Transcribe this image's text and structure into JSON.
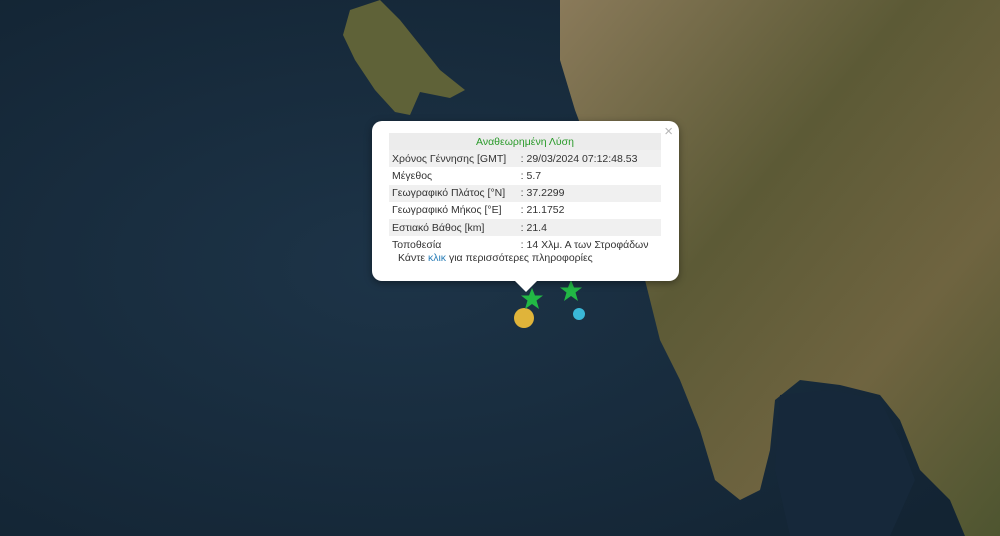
{
  "popup": {
    "title": "Αναθεωρημένη Λύση",
    "close_icon": "×",
    "rows": [
      {
        "label": "Χρόνος Γέννησης [GMT]",
        "value": ": 29/03/2024 07:12:48.53"
      },
      {
        "label": "Μέγεθος",
        "value": ": 5.7"
      },
      {
        "label": "Γεωγραφικό Πλάτος [°N]",
        "value": ": 37.2299"
      },
      {
        "label": "Γεωγραφικό Μήκος [°E]",
        "value": ": 21.1752"
      },
      {
        "label": "Εστιακό Βάθος [km]",
        "value": ": 21.4"
      },
      {
        "label": "Τοποθεσία",
        "value": ": 14 Χλμ. Α των Στροφάδων"
      }
    ],
    "more_prefix": "Κάντε ",
    "more_link": "κλικ",
    "more_suffix": " για περισσότερες πληροφορίες"
  },
  "markers": [
    {
      "type": "star",
      "color": "#22b845"
    },
    {
      "type": "star",
      "color": "#22b845"
    },
    {
      "type": "circle",
      "color": "#e0b43a"
    },
    {
      "type": "circle",
      "color": "#3ab8d8"
    }
  ]
}
